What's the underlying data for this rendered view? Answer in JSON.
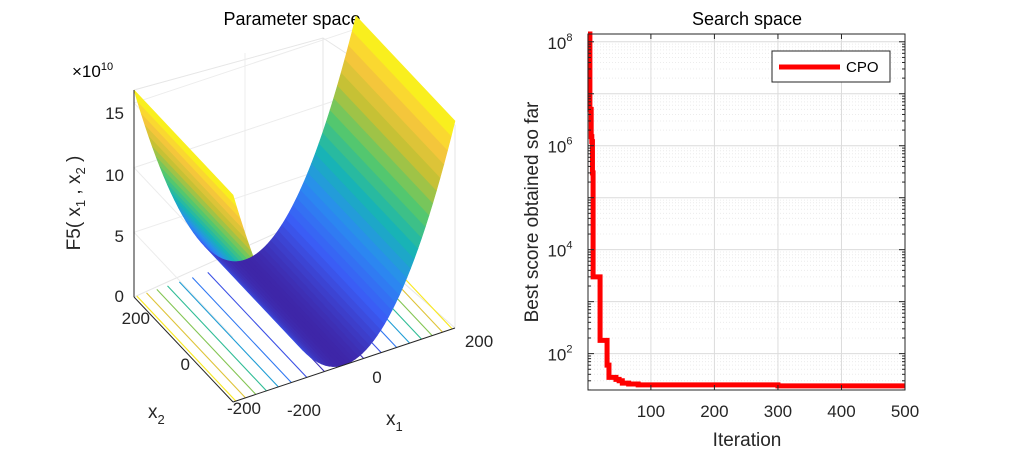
{
  "chart_data": [
    {
      "type": "surface",
      "title": "Parameter space",
      "xlabel": "x",
      "xlabel_sub": "1",
      "ylabel": "x",
      "ylabel_sub": "2",
      "zlabel": {
        "prefix": "F5( x",
        "s1": "1",
        "mid": " , x",
        "s2": "2",
        "suffix": " )"
      },
      "exponent": {
        "base": "×10",
        "power": "10"
      },
      "x_ticks": [
        "-200",
        "0",
        "200"
      ],
      "y_ticks": [
        "-200",
        "0",
        "200"
      ],
      "z_ticks": [
        "0",
        "5",
        "10",
        "15"
      ],
      "xlim": [
        -200,
        200
      ],
      "ylim": [
        -200,
        200
      ],
      "zlim": [
        0,
        16
      ],
      "colormap": [
        "#3e26a8",
        "#3b5cf5",
        "#2a8cf0",
        "#17b5b4",
        "#57c86b",
        "#c3c135",
        "#fac73c",
        "#f9fb15"
      ],
      "contours_below": true
    },
    {
      "type": "line",
      "title": "Search space",
      "xlabel": "Iteration",
      "ylabel": "Best score obtained so far",
      "xlim": [
        1,
        500
      ],
      "y_scale": "log",
      "ylim_exp": [
        1.3,
        8.15
      ],
      "x_ticks": [
        "100",
        "200",
        "300",
        "400",
        "500"
      ],
      "y_ticks": [
        {
          "base": "10",
          "exp": "2",
          "value_exp": 2
        },
        {
          "base": "10",
          "exp": "4",
          "value_exp": 4
        },
        {
          "base": "10",
          "exp": "6",
          "value_exp": 6
        },
        {
          "base": "10",
          "exp": "8",
          "value_exp": 8
        }
      ],
      "grid": true,
      "legend_position": "top-right",
      "series": [
        {
          "name": "CPO",
          "color": "#ff0000",
          "x": [
            1,
            3,
            4,
            6,
            7,
            8,
            9,
            17,
            18,
            20,
            24,
            30,
            31,
            33,
            34,
            40,
            45,
            50,
            55,
            65,
            80,
            100,
            150,
            200,
            300,
            400,
            500
          ],
          "y": [
            150000000,
            150000000,
            5000000,
            1500000,
            1200000,
            300000,
            3000,
            3000,
            3000,
            180,
            180,
            180,
            60,
            60,
            35,
            35,
            32,
            30,
            27,
            26,
            25,
            25,
            25,
            25,
            24,
            24,
            24
          ]
        }
      ]
    }
  ]
}
